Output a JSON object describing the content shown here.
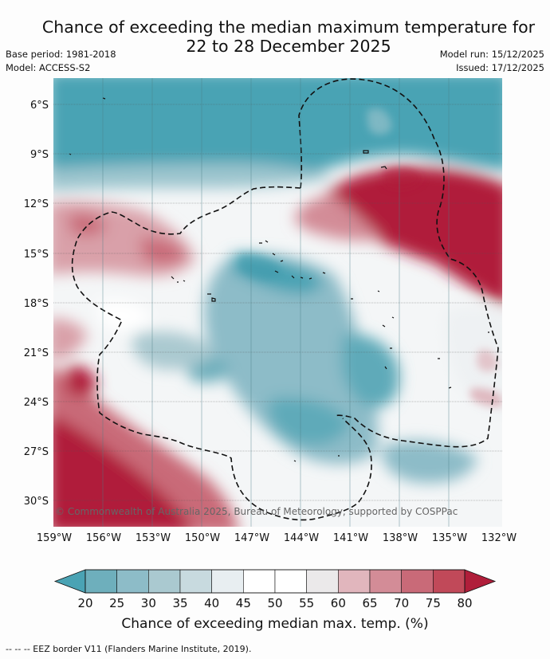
{
  "title": {
    "line1": "Chance of exceeding the median maximum temperature for",
    "line2": "22 to 28 December 2025"
  },
  "meta": {
    "base_period": "Base period: 1981-2018",
    "model": "Model: ACCESS-S2",
    "model_run": "Model run: 15/12/2025",
    "issued": "Issued: 17/12/2025"
  },
  "map": {
    "lat_labels": [
      "6°S",
      "9°S",
      "12°S",
      "15°S",
      "18°S",
      "21°S",
      "24°S",
      "27°S",
      "30°S"
    ],
    "lon_labels": [
      "159°W",
      "156°W",
      "153°W",
      "150°W",
      "147°W",
      "144°W",
      "141°W",
      "138°W",
      "135°W",
      "132°W"
    ],
    "copyright": "© Commonwealth of Australia 2025, Bureau of Meteorology, supported by COSPPac"
  },
  "colorbar": {
    "ticks": [
      "20",
      "25",
      "30",
      "35",
      "40",
      "45",
      "50",
      "55",
      "60",
      "65",
      "70",
      "75",
      "80"
    ],
    "under_color": "#4aa3b4",
    "over_color": "#b01e3a",
    "bin_colors": [
      "#6eafbc",
      "#8dbcc8",
      "#aac9d0",
      "#c8dadf",
      "#e8eef1",
      "#ffffff",
      "#ffffff",
      "#ebe9ea",
      "#e1b6bd",
      "#d38c97",
      "#c96a78",
      "#c14959"
    ],
    "title": "Chance of exceeding median max. temp. (%)"
  },
  "footnote": "--  --  -- EEZ border V11 (Flanders Marine Institute, 2019)."
}
